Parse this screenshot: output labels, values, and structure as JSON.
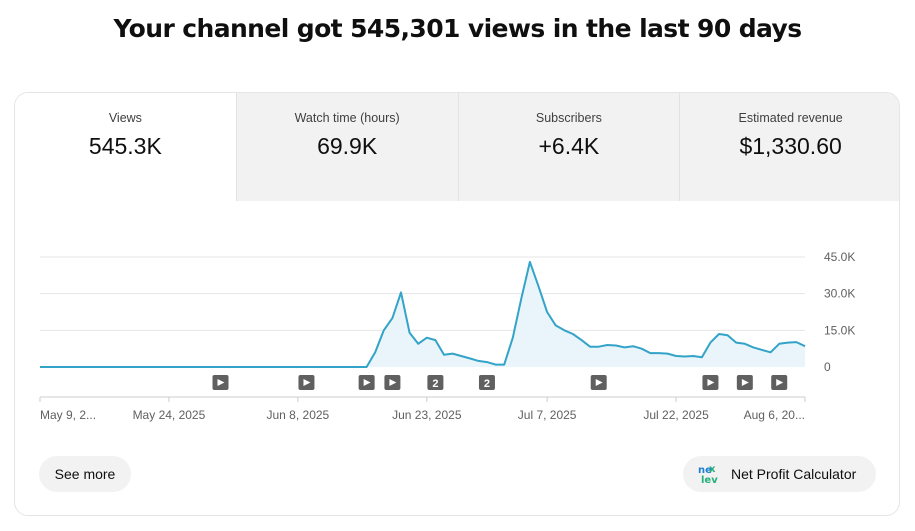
{
  "headline": "Your channel got 545,301 views in the last 90 days",
  "tabs": [
    {
      "label": "Views",
      "value": "545.3K"
    },
    {
      "label": "Watch time (hours)",
      "value": "69.9K"
    },
    {
      "label": "Subscribers",
      "value": "+6.4K"
    },
    {
      "label": "Estimated revenue",
      "value": "$1,330.60"
    }
  ],
  "colors": {
    "line": "#33a3c7",
    "fill": "#e9f5fa",
    "grid": "#e5e5e5"
  },
  "chart_data": {
    "type": "area",
    "title": "",
    "series": [
      {
        "name": "Views",
        "values": [
          0,
          0,
          0,
          0,
          0,
          0,
          0,
          0,
          0,
          0,
          0,
          0,
          0,
          0,
          0,
          0,
          0,
          0,
          0,
          0,
          0,
          0,
          0,
          0,
          0,
          0,
          0,
          0,
          0,
          0,
          0,
          0,
          0,
          0,
          0,
          0,
          0,
          0,
          0,
          6000,
          15000,
          20000,
          30500,
          14000,
          9500,
          12000,
          11000,
          5000,
          5500,
          4500,
          3500,
          2500,
          2000,
          1000,
          1000,
          12000,
          28000,
          43000,
          33000,
          22500,
          17000,
          15000,
          13500,
          11000,
          8300,
          8300,
          9000,
          8800,
          8000,
          8500,
          7500,
          5700,
          5700,
          5500,
          4500,
          4300,
          4500,
          4000,
          10000,
          13500,
          13000,
          10000,
          9500,
          8000,
          7000,
          6000,
          9500,
          10000,
          10200,
          8500
        ]
      }
    ],
    "ylim": [
      0,
      45000
    ],
    "y_ticks": [
      {
        "value": 45000,
        "label": "45.0K"
      },
      {
        "value": 30000,
        "label": "30.0K"
      },
      {
        "value": 15000,
        "label": "15.0K"
      },
      {
        "value": 0,
        "label": "0"
      }
    ],
    "x_ticks": [
      {
        "index": 0,
        "label": "May 9, 2..."
      },
      {
        "index": 15,
        "label": "May 24, 2025"
      },
      {
        "index": 30,
        "label": "Jun 8, 2025"
      },
      {
        "index": 45,
        "label": "Jun 23, 2025"
      },
      {
        "index": 59,
        "label": "Jul 7, 2025"
      },
      {
        "index": 74,
        "label": "Jul 22, 2025"
      },
      {
        "index": 89,
        "label": "Aug 6, 20..."
      }
    ],
    "markers": [
      {
        "index": 21,
        "kind": "video",
        "label": ""
      },
      {
        "index": 31,
        "kind": "video",
        "label": ""
      },
      {
        "index": 38,
        "kind": "video",
        "label": ""
      },
      {
        "index": 41,
        "kind": "video",
        "label": ""
      },
      {
        "index": 46,
        "kind": "count",
        "label": "2"
      },
      {
        "index": 52,
        "kind": "count",
        "label": "2"
      },
      {
        "index": 65,
        "kind": "video",
        "label": ""
      },
      {
        "index": 78,
        "kind": "video",
        "label": ""
      },
      {
        "index": 82,
        "kind": "video",
        "label": ""
      },
      {
        "index": 86,
        "kind": "video",
        "label": ""
      }
    ]
  },
  "buttons": {
    "see_more": "See more",
    "net_profit": "Net Profit Calculator"
  }
}
